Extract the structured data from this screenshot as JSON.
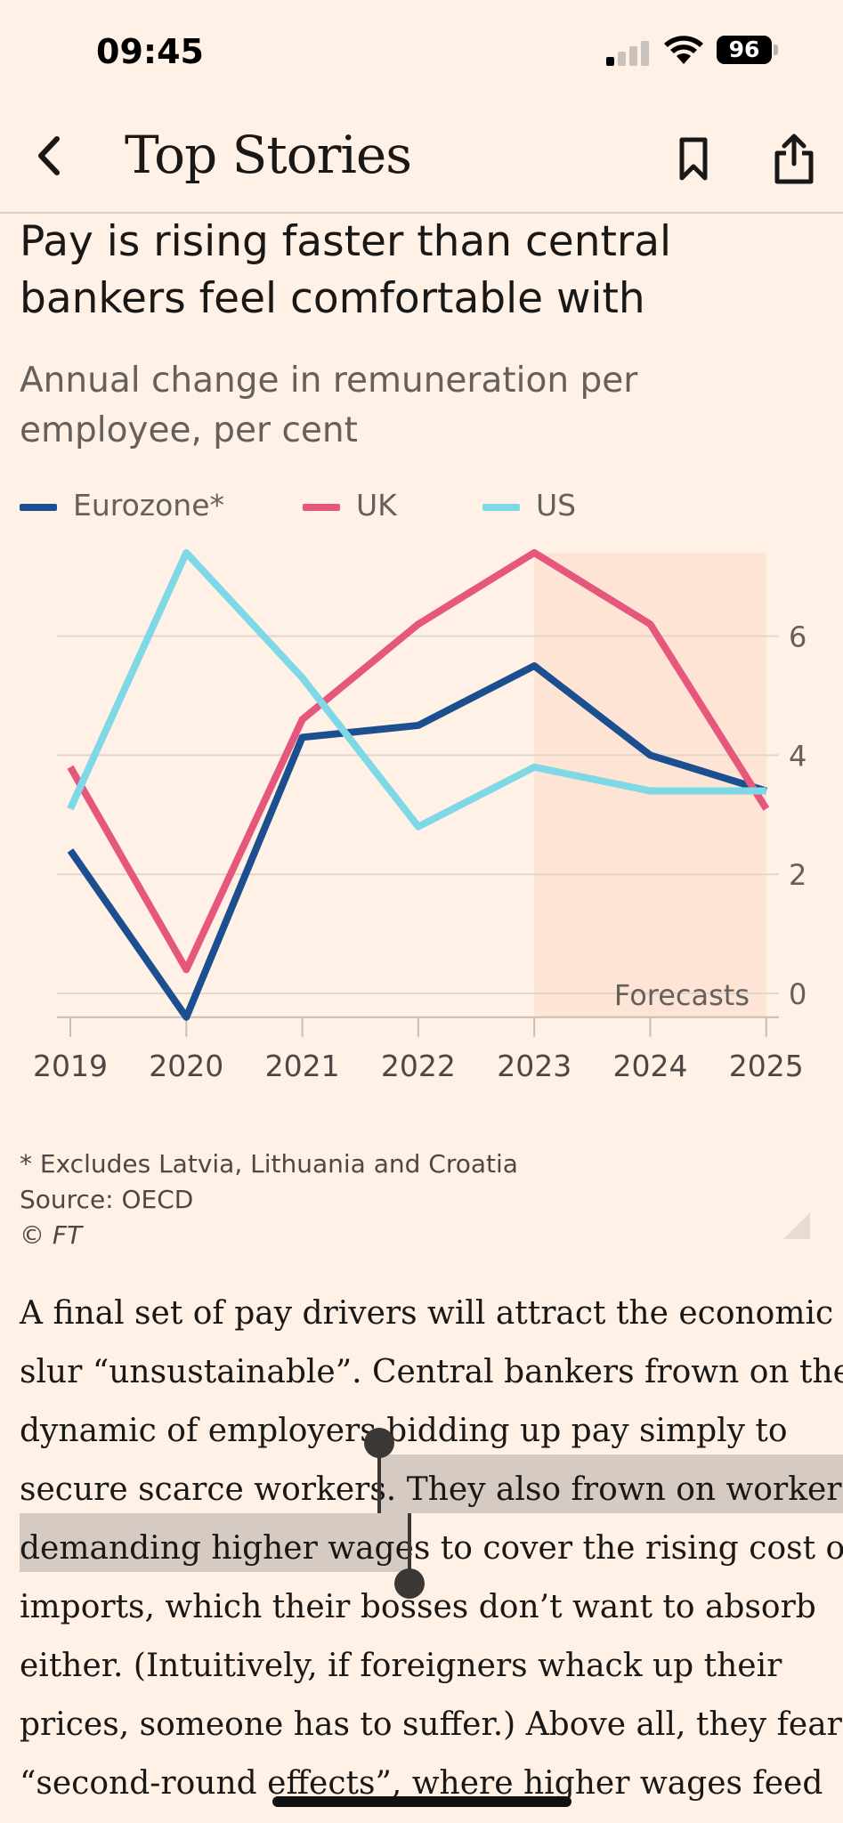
{
  "status": {
    "time": "09:45",
    "battery": "96"
  },
  "nav": {
    "title": "Top Stories",
    "back_icon": "chevron-left-icon",
    "bookmark_icon": "bookmark-icon",
    "share_icon": "share-icon"
  },
  "chart": {
    "title_line1": "Pay is rising faster than central",
    "title_line2": "bankers feel comfortable with",
    "subtitle_line1": "Annual change in remuneration per",
    "subtitle_line2": "employee, per cent",
    "forecast_label": "Forecasts",
    "footnote": "* Excludes Latvia, Lithuania and Croatia",
    "source": "Source: OECD",
    "copyright": "© FT"
  },
  "chart_data": {
    "type": "line",
    "x": [
      "2019",
      "2020",
      "2021",
      "2022",
      "2023",
      "2024",
      "2025"
    ],
    "series": [
      {
        "name": "Eurozone*",
        "color": "#1B4F8F",
        "values": [
          2.4,
          -0.4,
          4.3,
          4.5,
          5.5,
          4.0,
          3.4
        ]
      },
      {
        "name": "UK",
        "color": "#E5577D",
        "values": [
          3.8,
          0.4,
          4.6,
          6.2,
          7.4,
          6.2,
          3.1
        ]
      },
      {
        "name": "US",
        "color": "#7ED8E6",
        "values": [
          3.1,
          7.4,
          5.3,
          2.8,
          3.8,
          3.4,
          3.4
        ]
      }
    ],
    "yticks": [
      "6",
      "4",
      "2",
      "0"
    ],
    "ylim": [
      -0.4,
      7.4
    ],
    "forecast_from": "2023",
    "forecast_to": "2025",
    "legend_position": "top-left",
    "grid": true
  },
  "article": {
    "lines": [
      "A final set of pay drivers will attract the economic",
      "slur “unsustainable”. Central bankers frown on the",
      "dynamic of employers bidding up pay simply to",
      "secure scarce workers. They also frown on workers",
      "demanding higher wages to cover the rising cost of",
      "imports, which their bosses don’t want to absorb",
      "either. (Intuitively, if foreigners whack up their",
      "prices, someone has to suffer.) Above all, they fear",
      "“second-round effects”, where higher wages feed"
    ]
  }
}
